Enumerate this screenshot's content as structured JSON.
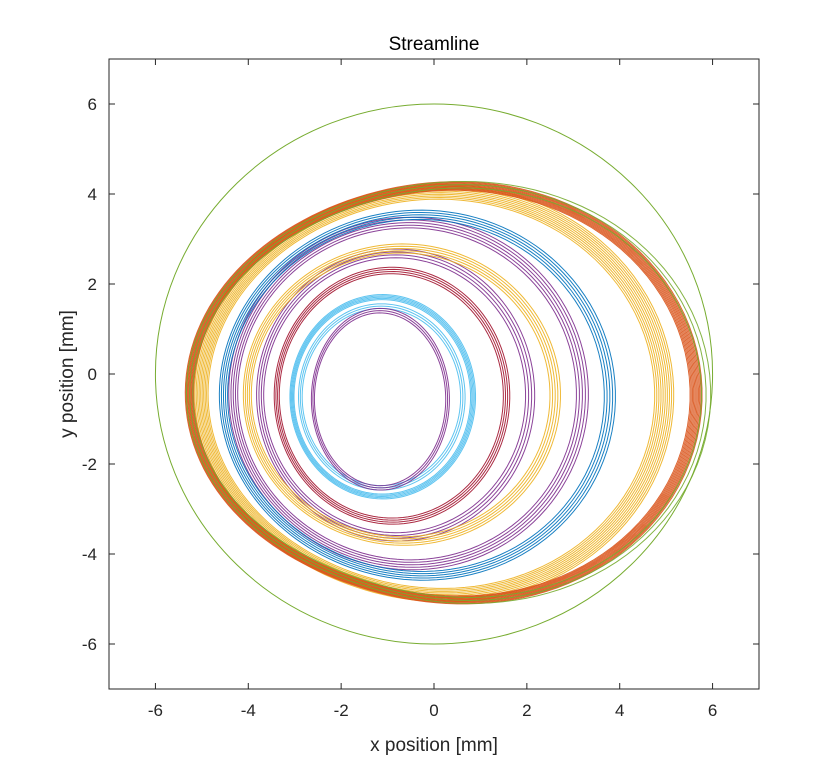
{
  "chart_data": {
    "type": "line",
    "title": "Streamline",
    "xlabel": "x position [mm]",
    "ylabel": "y position [mm]",
    "xlim": [
      -7,
      7
    ],
    "ylim": [
      -7,
      7
    ],
    "xticks": [
      -6,
      -4,
      -2,
      0,
      2,
      4,
      6
    ],
    "yticks": [
      -6,
      -4,
      -2,
      0,
      2,
      4,
      6
    ],
    "grid": false,
    "boundary_circle": {
      "cx": 0,
      "cy": 0,
      "r": 6,
      "color": "#77AC30"
    },
    "series": [
      {
        "color": "#4DBEEE",
        "loops": [
          {
            "cx": -1.3,
            "cy": -0.55,
            "rx": 1.75,
            "ry": 2.05,
            "k": 0.1,
            "p": 0.0,
            "n": 3,
            "spread": 0.05
          },
          {
            "cx": -1.3,
            "cy": -0.55,
            "rx": 1.95,
            "ry": 2.25,
            "k": 0.1,
            "p": 0.0,
            "n": 5,
            "spread": 0.05
          }
        ]
      },
      {
        "color": "#7E2F8E",
        "loops": [
          {
            "cx": -1.3,
            "cy": -0.6,
            "rx": 1.45,
            "ry": 2.0,
            "k": 0.1,
            "p": 0.0,
            "n": 3,
            "spread": 0.05
          },
          {
            "cx": -1.2,
            "cy": -0.55,
            "rx": 2.85,
            "ry": 3.25,
            "k": 0.13,
            "p": 0.02,
            "n": 4,
            "spread": 0.06
          },
          {
            "cx": -1.1,
            "cy": -0.55,
            "rx": 3.65,
            "ry": 3.95,
            "k": 0.15,
            "p": 0.03,
            "n": 5,
            "spread": 0.06
          }
        ]
      },
      {
        "color": "#A2142F",
        "loops": [
          {
            "cx": -1.2,
            "cy": -0.55,
            "rx": 2.45,
            "ry": 2.85,
            "k": 0.12,
            "p": 0.01,
            "n": 4,
            "spread": 0.05
          }
        ]
      },
      {
        "color": "#EDB120",
        "loops": [
          {
            "cx": -1.15,
            "cy": -0.55,
            "rx": 3.25,
            "ry": 3.35,
            "k": 0.14,
            "p": 0.02,
            "n": 5,
            "spread": 0.06
          },
          {
            "cx": -0.9,
            "cy": -0.6,
            "rx": 4.7,
            "ry": 4.75,
            "k": 0.19,
            "p": 0.06,
            "n": 10,
            "spread": 0.07
          }
        ]
      },
      {
        "color": "#0072BD",
        "loops": [
          {
            "cx": -1.0,
            "cy": -0.6,
            "rx": 4.0,
            "ry": 4.2,
            "k": 0.16,
            "p": 0.04,
            "n": 5,
            "spread": 0.05
          }
        ]
      },
      {
        "color": "#D95319",
        "loops": [
          {
            "cx": -0.8,
            "cy": -0.6,
            "rx": 5.05,
            "ry": 4.95,
            "k": 0.2,
            "p": 0.08,
            "n": 11,
            "spread": 0.04
          }
        ]
      },
      {
        "color": "#77AC30",
        "loops": [
          {
            "cx": -0.75,
            "cy": -0.6,
            "rx": 5.1,
            "ry": 5.0,
            "k": 0.21,
            "p": 0.09,
            "n": 3,
            "spread": 0.03
          }
        ]
      }
    ]
  }
}
